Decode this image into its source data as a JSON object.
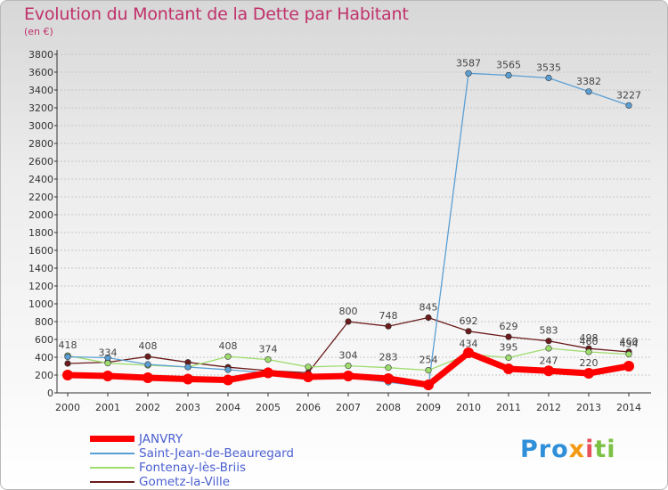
{
  "title": "Evolution du Montant de la Dette par Habitant",
  "subtitle": "(en €)",
  "brand": "Proxiti",
  "colors": {
    "title": "#c0306a",
    "janvry": "#ff0000",
    "saint_jean": "#5a9fd4",
    "fontenay": "#9fdc6e",
    "gometz": "#6b1b1b",
    "grid": "#c7c7c7"
  },
  "chart_data": {
    "type": "line",
    "x": [
      2000,
      2001,
      2002,
      2003,
      2004,
      2005,
      2006,
      2007,
      2008,
      2009,
      2010,
      2011,
      2012,
      2013,
      2014
    ],
    "ylim": [
      0,
      3800
    ],
    "yticks": [
      0,
      200,
      400,
      600,
      800,
      1000,
      1200,
      1400,
      1600,
      1800,
      2000,
      2200,
      2400,
      2600,
      2800,
      3000,
      3200,
      3400,
      3600,
      3800
    ],
    "grid": "horizontal",
    "legend": "bottom-left",
    "series": [
      {
        "name": "JANVRY",
        "values": [
          200,
          190,
          170,
          155,
          145,
          225,
          180,
          190,
          160,
          90,
          450,
          270,
          247,
          220,
          300
        ],
        "labels": [
          "",
          "",
          "",
          "",
          "",
          "",
          "",
          "",
          "",
          "",
          "",
          "",
          "247",
          "220",
          ""
        ]
      },
      {
        "name": "Saint-Jean-de-Beauregard",
        "values": [
          405,
          395,
          320,
          290,
          260,
          225,
          192,
          171,
          120,
          65,
          3587,
          3565,
          3535,
          3382,
          3227
        ],
        "labels": [
          "",
          "",
          "",
          "",
          "",
          "",
          "",
          "",
          "",
          "",
          "3587",
          "3565",
          "3535",
          "3382",
          "3227"
        ]
      },
      {
        "name": "Fontenay-lès-Briis",
        "values": [
          418,
          334,
          310,
          290,
          408,
          374,
          292,
          304,
          283,
          254,
          434,
          395,
          500,
          460,
          434
        ],
        "labels": [
          "418",
          "334",
          "",
          "",
          "408",
          "374",
          "",
          "304",
          "283",
          "254",
          "434",
          "395",
          "",
          "460",
          "434"
        ]
      },
      {
        "name": "Gometz-la-Ville",
        "values": [
          330,
          344,
          408,
          343,
          288,
          250,
          226,
          800,
          748,
          845,
          692,
          629,
          583,
          498,
          460
        ],
        "labels": [
          "",
          "",
          "408",
          "",
          "",
          "",
          "",
          "800",
          "748",
          "845",
          "692",
          "629",
          "583",
          "498",
          "460"
        ]
      }
    ]
  }
}
